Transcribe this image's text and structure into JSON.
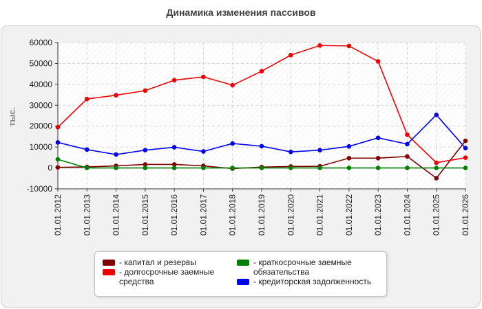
{
  "title": "Динамика изменения пассивов",
  "chart_data": {
    "type": "line",
    "title": "Динамика изменения пассивов",
    "xlabel": "",
    "ylabel": "тыс.",
    "ylim": [
      -10000,
      60000
    ],
    "yticks": [
      -10000,
      0,
      10000,
      20000,
      30000,
      40000,
      50000,
      60000
    ],
    "grid": true,
    "legend_position": "bottom",
    "categories": [
      "01.01.2012",
      "01.01.2013",
      "01.01.2014",
      "01.01.2015",
      "01.01.2016",
      "01.01.2017",
      "01.01.2018",
      "01.01.2019",
      "01.01.2020",
      "01.01.2021",
      "01.01.2022",
      "01.01.2023",
      "01.01.2024",
      "01.01.2025",
      "01.01.2026"
    ],
    "series": [
      {
        "name": "капитал и резервы",
        "color": "#800000",
        "values": [
          300,
          500,
          1000,
          1700,
          1700,
          1000,
          -300,
          400,
          700,
          800,
          4700,
          4700,
          5500,
          -4900,
          13000
        ]
      },
      {
        "name": "долгосрочные заемные средства",
        "color": "#ee0000",
        "values": [
          19500,
          33000,
          34800,
          37000,
          42000,
          43600,
          39600,
          46300,
          54000,
          58600,
          58400,
          51000,
          15900,
          2500,
          4900
        ]
      },
      {
        "name": "краткосрочные заемные обязательства",
        "color": "#008000",
        "values": [
          4100,
          0,
          0,
          0,
          0,
          0,
          0,
          0,
          0,
          0,
          0,
          0,
          0,
          0,
          0
        ]
      },
      {
        "name": "кредиторская задолженность",
        "color": "#0000ee",
        "values": [
          12200,
          8800,
          6400,
          8500,
          9900,
          7900,
          11700,
          10400,
          7700,
          8500,
          10300,
          14400,
          11400,
          25400,
          9500
        ]
      }
    ]
  },
  "legend": {
    "items": [
      {
        "label": "- капитал и резервы",
        "color": "#800000"
      },
      {
        "label": "- долгосрочные заемные средства",
        "color": "#ee0000"
      },
      {
        "label": "- краткосрочные заемные обязательства",
        "color": "#008000"
      },
      {
        "label": "- кредиторская задолженность",
        "color": "#0000ee"
      }
    ]
  }
}
